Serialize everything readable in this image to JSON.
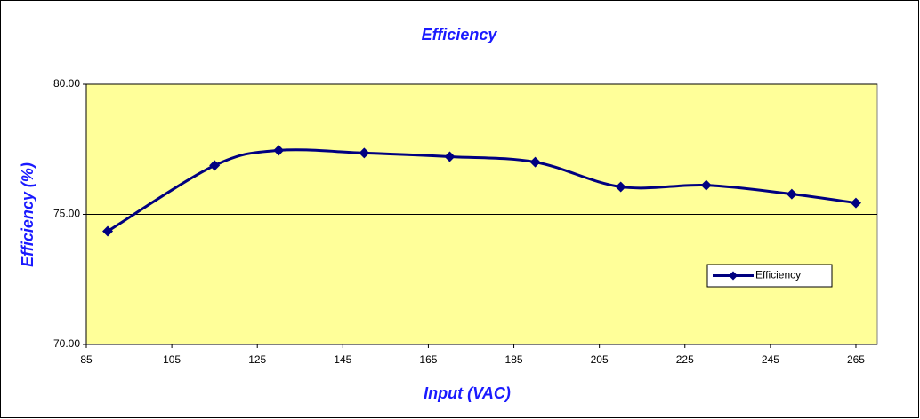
{
  "chart_data": {
    "type": "line",
    "title": "Efficiency",
    "x_label": "Input (VAC)",
    "y_label": "Efficiency (%)",
    "series": [
      {
        "name": "Efficiency",
        "color": "#000080",
        "x": [
          90,
          115,
          130,
          150,
          170,
          190,
          210,
          230,
          250,
          265
        ],
        "values": [
          74.35,
          76.88,
          77.46,
          77.36,
          77.22,
          77.01,
          76.06,
          76.12,
          75.78,
          75.44
        ]
      }
    ],
    "xlim": [
      85,
      270
    ],
    "xticks": [
      85,
      105,
      125,
      145,
      165,
      185,
      205,
      225,
      245,
      265
    ],
    "ylim": [
      70,
      80
    ],
    "yticks": [
      {
        "value": 70,
        "label": "70.00"
      },
      {
        "value": 75,
        "label": "75.00"
      },
      {
        "value": 80,
        "label": "80.00"
      }
    ],
    "grid": true,
    "legend": "right",
    "plot_background": "#ffff99"
  }
}
